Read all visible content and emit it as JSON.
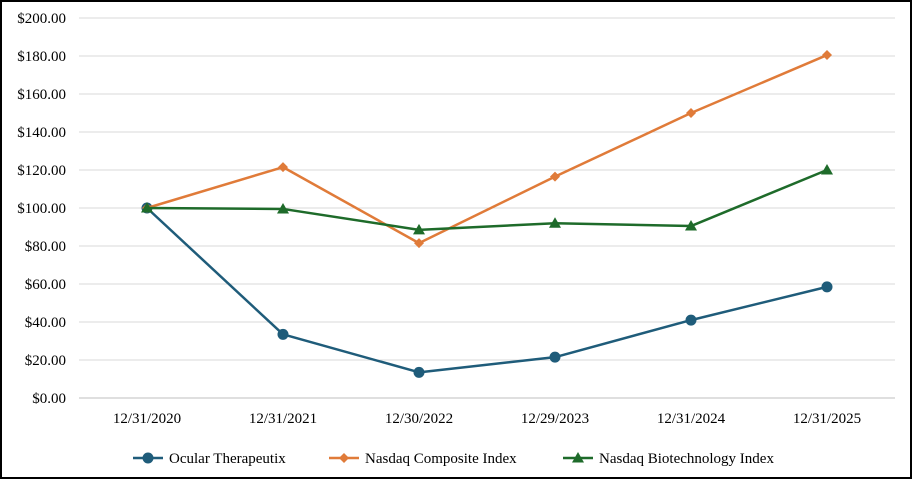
{
  "chart_data": {
    "type": "line",
    "title": "",
    "xlabel": "",
    "ylabel": "",
    "categories": [
      "12/31/2020",
      "12/31/2021",
      "12/30/2022",
      "12/29/2023",
      "12/31/2024",
      "12/31/2025"
    ],
    "ylim": [
      0,
      200
    ],
    "yticks": [
      0,
      20,
      40,
      60,
      80,
      100,
      120,
      140,
      160,
      180,
      200
    ],
    "ytick_labels": [
      "$0.00",
      "$20.00",
      "$40.00",
      "$60.00",
      "$80.00",
      "$100.00",
      "$120.00",
      "$140.00",
      "$160.00",
      "$180.00",
      "$200.00"
    ],
    "grid": true,
    "legend_position": "bottom",
    "series": [
      {
        "name": "Ocular Therapeutix",
        "color": "#1f5c7a",
        "marker": "circle",
        "values": [
          100,
          33.5,
          13.5,
          21.5,
          41,
          58.5
        ]
      },
      {
        "name": "Nasdaq Composite Index",
        "color": "#e07b39",
        "marker": "diamond",
        "values": [
          100,
          121.5,
          81.5,
          116.5,
          150,
          180.5
        ]
      },
      {
        "name": "Nasdaq Biotechnology Index",
        "color": "#1e6b2a",
        "marker": "triangle",
        "values": [
          100,
          99.5,
          88.5,
          92,
          90.5,
          120
        ]
      }
    ]
  }
}
